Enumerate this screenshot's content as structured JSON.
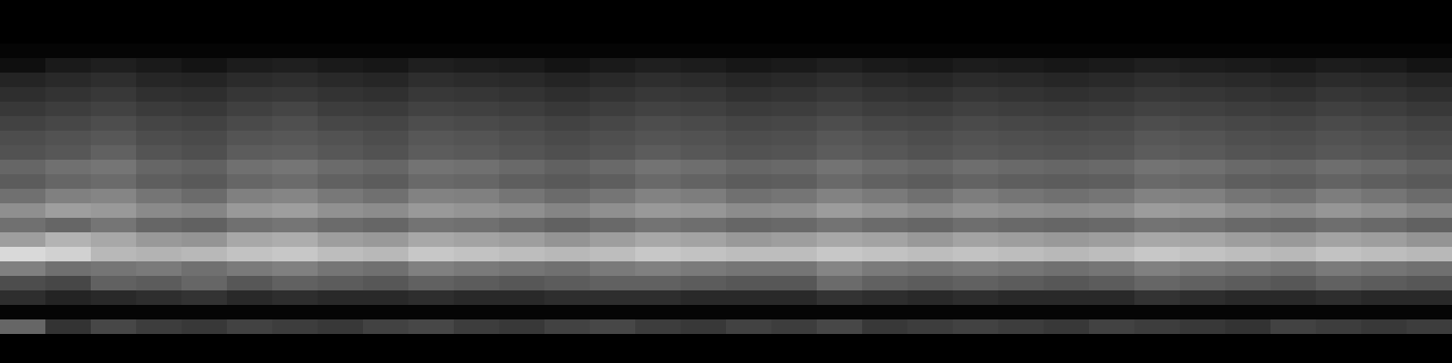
{
  "chart_data": {
    "type": "heatmap",
    "zlim": [
      0,
      100
    ],
    "color": "#ffffff",
    "tick_labels": false,
    "cells": [
      [
        0,
        0,
        0,
        0,
        0,
        0,
        0,
        0,
        0,
        0,
        0,
        0,
        0,
        0,
        0,
        0,
        0,
        0,
        0,
        0,
        0,
        0,
        0,
        0,
        0,
        0,
        0,
        0,
        0,
        0,
        0,
        0
      ],
      [
        0,
        0,
        0,
        0,
        0,
        0,
        0,
        0,
        0,
        0,
        0,
        0,
        0,
        0,
        0,
        0,
        0,
        0,
        0,
        0,
        0,
        0,
        0,
        0,
        0,
        0,
        0,
        0,
        0,
        0,
        0,
        0
      ],
      [
        0,
        0,
        0,
        0,
        0,
        0,
        0,
        0,
        0,
        0,
        0,
        0,
        0,
        0,
        0,
        0,
        0,
        0,
        0,
        0,
        0,
        0,
        0,
        0,
        0,
        0,
        0,
        0,
        0,
        0,
        0,
        0
      ],
      [
        2,
        2,
        2,
        2,
        2,
        2,
        2,
        2,
        2,
        2,
        2,
        2,
        2,
        2,
        2,
        2,
        2,
        2,
        2,
        2,
        2,
        2,
        2,
        2,
        2,
        2,
        2,
        2,
        2,
        2,
        2,
        2
      ],
      [
        6,
        10,
        12,
        10,
        8,
        11,
        12,
        10,
        9,
        12,
        11,
        10,
        8,
        10,
        12,
        11,
        9,
        10,
        12,
        10,
        9,
        11,
        10,
        9,
        10,
        12,
        11,
        10,
        9,
        11,
        10,
        8
      ],
      [
        14,
        16,
        18,
        15,
        14,
        17,
        18,
        16,
        15,
        18,
        17,
        16,
        14,
        16,
        18,
        17,
        15,
        16,
        18,
        16,
        15,
        17,
        16,
        15,
        16,
        18,
        17,
        16,
        15,
        17,
        16,
        14
      ],
      [
        18,
        20,
        22,
        19,
        18,
        21,
        22,
        20,
        19,
        22,
        21,
        20,
        18,
        20,
        22,
        21,
        19,
        20,
        22,
        20,
        19,
        21,
        20,
        19,
        20,
        22,
        21,
        20,
        19,
        21,
        20,
        18
      ],
      [
        22,
        24,
        26,
        23,
        22,
        25,
        27,
        24,
        23,
        26,
        25,
        24,
        22,
        24,
        26,
        25,
        23,
        24,
        26,
        24,
        23,
        25,
        24,
        23,
        24,
        26,
        25,
        24,
        23,
        25,
        24,
        22
      ],
      [
        26,
        28,
        30,
        27,
        26,
        29,
        31,
        28,
        27,
        30,
        29,
        28,
        26,
        28,
        30,
        29,
        27,
        28,
        30,
        28,
        27,
        29,
        28,
        27,
        28,
        30,
        29,
        28,
        27,
        29,
        28,
        26
      ],
      [
        30,
        32,
        34,
        30,
        29,
        33,
        34,
        32,
        30,
        34,
        33,
        31,
        29,
        31,
        33,
        32,
        30,
        31,
        34,
        32,
        30,
        32,
        31,
        30,
        31,
        34,
        33,
        31,
        30,
        32,
        31,
        29
      ],
      [
        32,
        34,
        38,
        33,
        31,
        36,
        37,
        34,
        32,
        36,
        35,
        33,
        31,
        33,
        36,
        34,
        32,
        33,
        36,
        34,
        32,
        34,
        33,
        32,
        33,
        36,
        35,
        33,
        32,
        34,
        33,
        31
      ],
      [
        40,
        44,
        46,
        40,
        38,
        44,
        46,
        42,
        40,
        45,
        44,
        41,
        38,
        41,
        45,
        43,
        40,
        41,
        45,
        42,
        40,
        43,
        41,
        40,
        41,
        45,
        44,
        41,
        40,
        43,
        41,
        38
      ],
      [
        36,
        40,
        42,
        37,
        35,
        40,
        42,
        38,
        36,
        41,
        40,
        37,
        35,
        37,
        41,
        39,
        36,
        37,
        41,
        38,
        36,
        39,
        37,
        36,
        37,
        41,
        40,
        37,
        36,
        39,
        37,
        35
      ],
      [
        44,
        50,
        52,
        46,
        42,
        50,
        52,
        47,
        44,
        51,
        50,
        46,
        42,
        46,
        51,
        49,
        44,
        46,
        51,
        48,
        44,
        49,
        46,
        44,
        46,
        51,
        50,
        46,
        44,
        49,
        46,
        42
      ],
      [
        56,
        62,
        60,
        54,
        52,
        60,
        62,
        57,
        55,
        60,
        58,
        56,
        52,
        56,
        60,
        59,
        55,
        56,
        61,
        58,
        55,
        58,
        56,
        55,
        56,
        61,
        60,
        56,
        55,
        59,
        56,
        52
      ],
      [
        44,
        40,
        46,
        40,
        38,
        44,
        46,
        42,
        40,
        45,
        44,
        41,
        38,
        41,
        45,
        43,
        40,
        41,
        45,
        42,
        40,
        43,
        41,
        40,
        41,
        45,
        44,
        41,
        40,
        43,
        41,
        38
      ],
      [
        62,
        70,
        66,
        60,
        58,
        66,
        68,
        62,
        60,
        66,
        64,
        62,
        58,
        62,
        66,
        64,
        60,
        62,
        66,
        64,
        60,
        64,
        62,
        60,
        62,
        66,
        65,
        62,
        60,
        64,
        62,
        58
      ],
      [
        85,
        82,
        72,
        70,
        72,
        76,
        78,
        74,
        72,
        78,
        76,
        74,
        72,
        74,
        78,
        76,
        74,
        74,
        78,
        76,
        74,
        76,
        74,
        72,
        74,
        78,
        76,
        74,
        72,
        76,
        74,
        72
      ],
      [
        50,
        44,
        46,
        48,
        44,
        48,
        50,
        46,
        44,
        50,
        48,
        46,
        44,
        48,
        50,
        48,
        46,
        46,
        52,
        48,
        46,
        48,
        46,
        44,
        46,
        50,
        48,
        46,
        44,
        48,
        46,
        44
      ],
      [
        30,
        28,
        38,
        36,
        40,
        34,
        38,
        36,
        34,
        38,
        36,
        34,
        36,
        38,
        38,
        36,
        34,
        34,
        42,
        38,
        36,
        38,
        36,
        34,
        36,
        40,
        38,
        36,
        34,
        38,
        36,
        34
      ],
      [
        18,
        14,
        16,
        18,
        20,
        16,
        18,
        16,
        16,
        18,
        16,
        16,
        18,
        18,
        18,
        16,
        16,
        16,
        20,
        18,
        16,
        18,
        16,
        16,
        16,
        20,
        18,
        16,
        16,
        18,
        16,
        16
      ],
      [
        2,
        2,
        2,
        2,
        2,
        2,
        2,
        2,
        2,
        2,
        2,
        2,
        2,
        2,
        2,
        2,
        2,
        2,
        2,
        2,
        2,
        2,
        2,
        2,
        2,
        2,
        2,
        2,
        2,
        2,
        2,
        2
      ],
      [
        40,
        20,
        28,
        24,
        22,
        26,
        24,
        22,
        26,
        28,
        24,
        22,
        26,
        28,
        24,
        22,
        26,
        24,
        28,
        22,
        24,
        26,
        24,
        22,
        26,
        24,
        22,
        20,
        26,
        24,
        22,
        24
      ],
      [
        0,
        0,
        0,
        0,
        0,
        0,
        0,
        0,
        0,
        0,
        0,
        0,
        0,
        0,
        0,
        0,
        0,
        0,
        0,
        0,
        0,
        0,
        0,
        0,
        0,
        0,
        0,
        0,
        0,
        0,
        0,
        0
      ],
      [
        0,
        0,
        0,
        0,
        0,
        0,
        0,
        0,
        0,
        0,
        0,
        0,
        0,
        0,
        0,
        0,
        0,
        0,
        0,
        0,
        0,
        0,
        0,
        0,
        0,
        0,
        0,
        0,
        0,
        0,
        0,
        0
      ]
    ]
  }
}
